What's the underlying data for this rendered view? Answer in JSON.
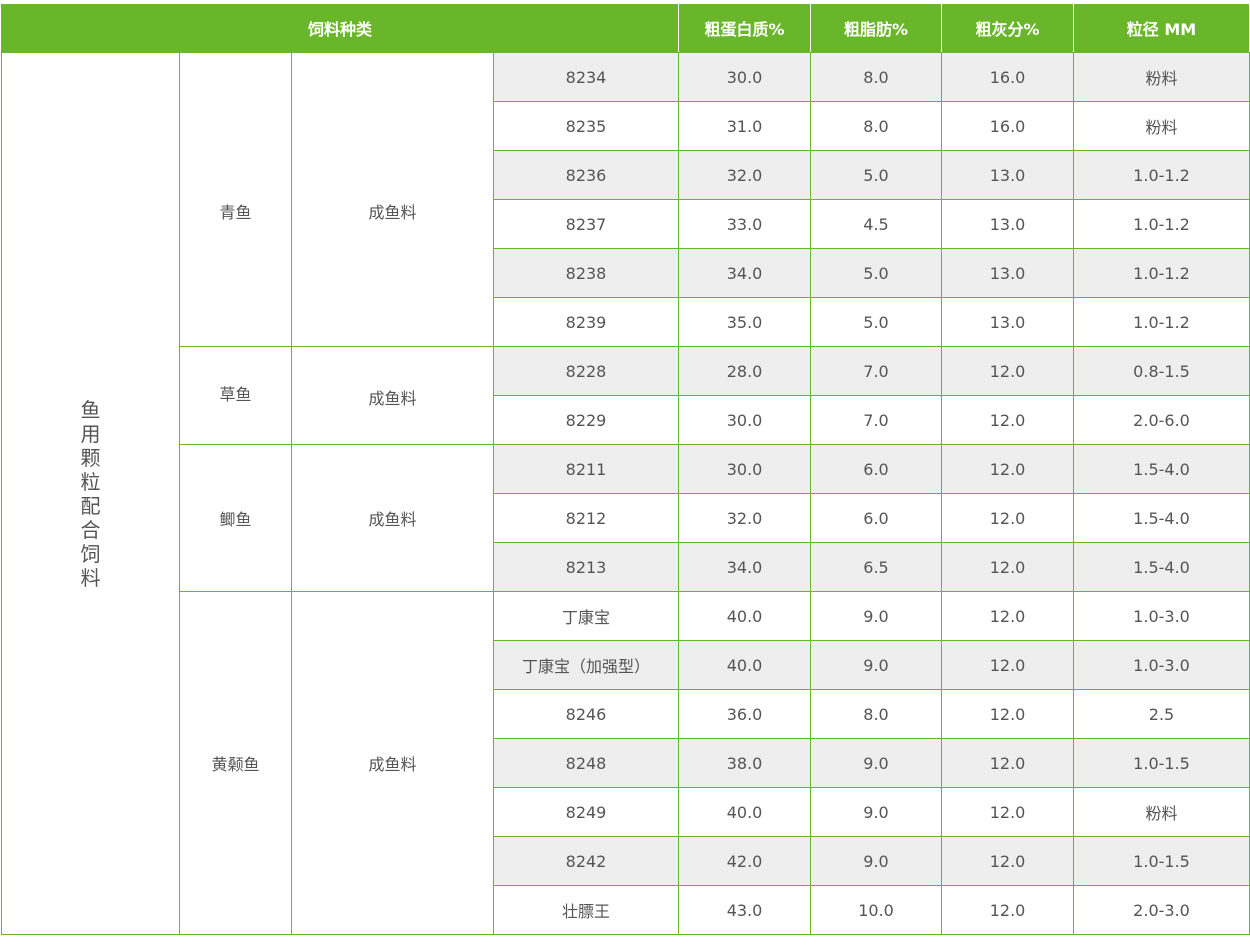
{
  "colors": {
    "accent": "#6ab62a",
    "stripe": "#eeeeee"
  },
  "header": {
    "category": "饲料种类",
    "protein": "粗蛋白质%",
    "fat": "粗脂肪%",
    "ash": "粗灰分%",
    "size": "粒径 MM"
  },
  "category": "鱼用颗粒配合饲料",
  "groups": [
    {
      "fish": "青鱼",
      "type": "成鱼料",
      "rows": [
        [
          "8234",
          "30.0",
          "8.0",
          "16.0",
          "粉料"
        ],
        [
          "8235",
          "31.0",
          "8.0",
          "16.0",
          "粉料"
        ],
        [
          "8236",
          "32.0",
          "5.0",
          "13.0",
          "1.0-1.2"
        ],
        [
          "8237",
          "33.0",
          "4.5",
          "13.0",
          "1.0-1.2"
        ],
        [
          "8238",
          "34.0",
          "5.0",
          "13.0",
          "1.0-1.2"
        ],
        [
          "8239",
          "35.0",
          "5.0",
          "13.0",
          "1.0-1.2"
        ]
      ]
    },
    {
      "fish": "草鱼",
      "type": "成鱼料",
      "rows": [
        [
          "8228",
          "28.0",
          "7.0",
          "12.0",
          "0.8-1.5"
        ],
        [
          "8229",
          "30.0",
          "7.0",
          "12.0",
          "2.0-6.0"
        ]
      ]
    },
    {
      "fish": "鲫鱼",
      "type": "成鱼料",
      "rows": [
        [
          "8211",
          "30.0",
          "6.0",
          "12.0",
          "1.5-4.0"
        ],
        [
          "8212",
          "32.0",
          "6.0",
          "12.0",
          "1.5-4.0"
        ],
        [
          "8213",
          "34.0",
          "6.5",
          "12.0",
          "1.5-4.0"
        ]
      ]
    },
    {
      "fish": "黄颡鱼",
      "type": "成鱼料",
      "rows": [
        [
          "丁康宝",
          "40.0",
          "9.0",
          "12.0",
          "1.0-3.0"
        ],
        [
          "丁康宝（加强型）",
          "40.0",
          "9.0",
          "12.0",
          "1.0-3.0"
        ],
        [
          "8246",
          "36.0",
          "8.0",
          "12.0",
          "2.5"
        ],
        [
          "8248",
          "38.0",
          "9.0",
          "12.0",
          "1.0-1.5"
        ],
        [
          "8249",
          "40.0",
          "9.0",
          "12.0",
          "粉料"
        ],
        [
          "8242",
          "42.0",
          "9.0",
          "12.0",
          "1.0-1.5"
        ],
        [
          "壮膘王",
          "43.0",
          "10.0",
          "12.0",
          "2.0-3.0"
        ]
      ]
    }
  ]
}
